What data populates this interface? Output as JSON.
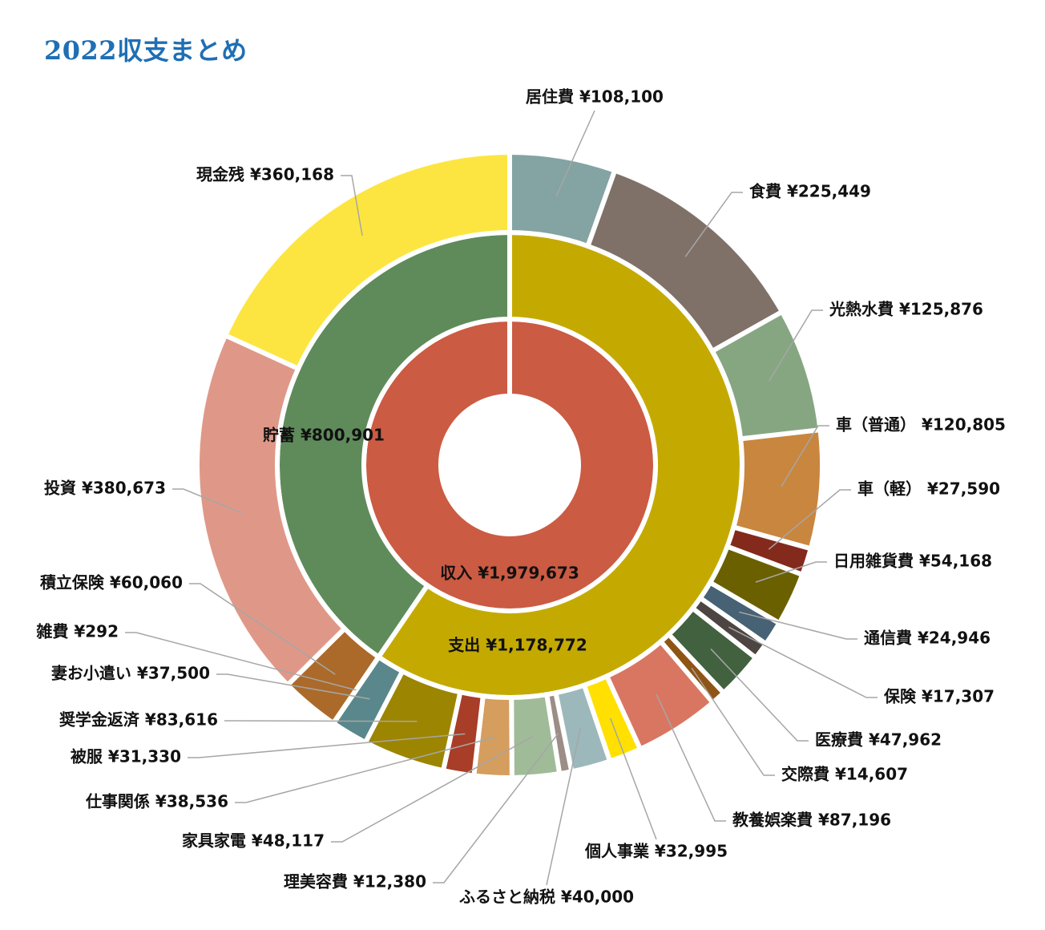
{
  "chart_data": {
    "type": "sunburst",
    "title": "2022収支まとめ",
    "inner": {
      "label": "収入",
      "value": 1979673,
      "value_text": "¥1,979,673",
      "color": "#cb5b43"
    },
    "middle": [
      {
        "label": "支出",
        "value": 1178772,
        "value_text": "¥1,178,772",
        "color": "#c4aa00"
      },
      {
        "label": "貯蓄",
        "value": 800901,
        "value_text": "¥800,901",
        "color": "#5f8b5b"
      }
    ],
    "outer": [
      {
        "label": "居住費",
        "value": 108100,
        "value_text": "¥108,100",
        "group": "支出",
        "color": "#84a3a3"
      },
      {
        "label": "食費",
        "value": 225449,
        "value_text": "¥225,449",
        "group": "支出",
        "color": "#7f7168"
      },
      {
        "label": "光熱水費",
        "value": 125876,
        "value_text": "¥125,876",
        "group": "支出",
        "color": "#86a682"
      },
      {
        "label": "車（普通）",
        "value": 120805,
        "value_text": "¥120,805",
        "group": "支出",
        "color": "#c9863e"
      },
      {
        "label": "車（軽）",
        "value": 27590,
        "value_text": "¥27,590",
        "group": "支出",
        "color": "#832a1d"
      },
      {
        "label": "日用雑貨費",
        "value": 54168,
        "value_text": "¥54,168",
        "group": "支出",
        "color": "#6b6000"
      },
      {
        "label": "通信費",
        "value": 24946,
        "value_text": "¥24,946",
        "group": "支出",
        "color": "#466274"
      },
      {
        "label": "保険",
        "value": 17307,
        "value_text": "¥17,307",
        "group": "支出",
        "color": "#4d4542"
      },
      {
        "label": "医療費",
        "value": 47962,
        "value_text": "¥47,962",
        "group": "支出",
        "color": "#42613f"
      },
      {
        "label": "交際費",
        "value": 14607,
        "value_text": "¥14,607",
        "group": "支出",
        "color": "#8e5514"
      },
      {
        "label": "教養娯楽費",
        "value": 87196,
        "value_text": "¥87,196",
        "group": "支出",
        "color": "#d97662"
      },
      {
        "label": "個人事業",
        "value": 32995,
        "value_text": "¥32,995",
        "group": "支出",
        "color": "#ffe000"
      },
      {
        "label": "ふるさと納税",
        "value": 40000,
        "value_text": "¥40,000",
        "group": "支出",
        "color": "#9db8bb"
      },
      {
        "label": "理美容費",
        "value": 12380,
        "value_text": "¥12,380",
        "group": "支出",
        "color": "#9c8d87"
      },
      {
        "label": "家具家電",
        "value": 48117,
        "value_text": "¥48,117",
        "group": "支出",
        "color": "#a0bb98"
      },
      {
        "label": "仕事関係",
        "value": 38536,
        "value_text": "¥38,536",
        "group": "支出",
        "color": "#d59d5e"
      },
      {
        "label": "被服",
        "value": 31330,
        "value_text": "¥31,330",
        "group": "支出",
        "color": "#a83d28"
      },
      {
        "label": "奨学金返済",
        "value": 83616,
        "value_text": "¥83,616",
        "group": "支出",
        "color": "#9c8500"
      },
      {
        "label": "妻お小遣い",
        "value": 37500,
        "value_text": "¥37,500",
        "group": "支出",
        "color": "#5a878b"
      },
      {
        "label": "雑費",
        "value": 292,
        "value_text": "¥292",
        "group": "支出",
        "color": "#3a3a3a"
      },
      {
        "label": "積立保険",
        "value": 60060,
        "value_text": "¥60,060",
        "group": "貯蓄",
        "color": "#ab6a2a"
      },
      {
        "label": "投資",
        "value": 380673,
        "value_text": "¥380,673",
        "group": "貯蓄",
        "color": "#df9888"
      },
      {
        "label": "現金残",
        "value": 360168,
        "value_text": "¥360,168",
        "group": "貯蓄",
        "color": "#fde541"
      }
    ]
  }
}
